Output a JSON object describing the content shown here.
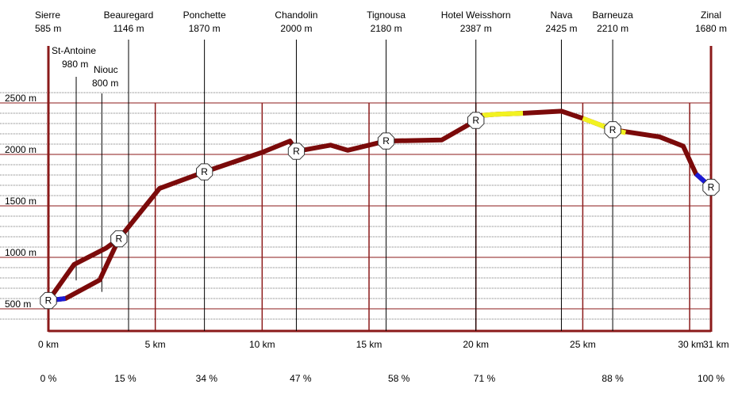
{
  "chart_data": {
    "type": "line",
    "title": "",
    "xlabel": "",
    "ylabel": "",
    "xlim": [
      0,
      31
    ],
    "ylim": [
      260,
      2800
    ],
    "grid": true,
    "y_major_ticks": [
      {
        "value": 500,
        "label": "500 m"
      },
      {
        "value": 1000,
        "label": "1000 m"
      },
      {
        "value": 1500,
        "label": "1500 m"
      },
      {
        "value": 2000,
        "label": "2000 m"
      },
      {
        "value": 2500,
        "label": "2500 m"
      }
    ],
    "y_minor_step": 100,
    "x_major_lines": [
      0,
      5,
      10,
      15,
      20,
      25,
      30
    ],
    "x_ticks": [
      {
        "value": 0,
        "label": "0 km"
      },
      {
        "value": 5,
        "label": "5 km"
      },
      {
        "value": 10,
        "label": "10 km"
      },
      {
        "value": 15,
        "label": "15 km"
      },
      {
        "value": 20,
        "label": "20 km"
      },
      {
        "value": 25,
        "label": "25 km"
      },
      {
        "value": 30,
        "label": "30 km"
      },
      {
        "value": 31,
        "label": "31 km"
      }
    ],
    "percent_labels": [
      {
        "x": 0,
        "label": "0 %"
      },
      {
        "x": 3.6,
        "label": "15 %"
      },
      {
        "x": 7.4,
        "label": "34 %"
      },
      {
        "x": 11.8,
        "label": "47 %"
      },
      {
        "x": 16.4,
        "label": "58 %"
      },
      {
        "x": 20.4,
        "label": "71 %"
      },
      {
        "x": 26.4,
        "label": "88 %"
      },
      {
        "x": 31,
        "label": "100 %"
      }
    ],
    "places": [
      {
        "name": "Sierre",
        "alt": "585 m",
        "x": 0,
        "point": [
          0,
          580
        ]
      },
      {
        "name": "Beauregard",
        "alt": "1146 m",
        "x": 3.75,
        "point": [
          3.3,
          1180
        ]
      },
      {
        "name": "Ponchette",
        "alt": "1870 m",
        "x": 7.3,
        "point": [
          7.3,
          1830
        ]
      },
      {
        "name": "Chandolin",
        "alt": "2000 m",
        "x": 11.6,
        "point": [
          11.6,
          2030
        ]
      },
      {
        "name": "Tignousa",
        "alt": "2180 m",
        "x": 15.8,
        "point": [
          15.8,
          2130
        ]
      },
      {
        "name": "Hotel Weisshorn",
        "alt": "2387 m",
        "x": 20.0,
        "point": [
          20.0,
          2330
        ]
      },
      {
        "name": "Nava",
        "alt": "2425 m",
        "x": 24.0,
        "point": [
          24.0,
          2420
        ]
      },
      {
        "name": "Barneuza",
        "alt": "2210 m",
        "x": 26.4,
        "point": [
          26.4,
          2240
        ]
      },
      {
        "name": "Zinal",
        "alt": "1680 m",
        "x": 31.0,
        "point": [
          31.0,
          1680
        ]
      }
    ],
    "side_places": [
      {
        "name": "St-Antoine",
        "alt": "980 m",
        "point": [
          1.3,
          930
        ]
      },
      {
        "name": "Niouc",
        "alt": "800 m",
        "point": [
          2.5,
          780
        ]
      }
    ],
    "route_main": [
      [
        0,
        580
      ],
      [
        1.2,
        930
      ],
      [
        2.7,
        1090
      ],
      [
        3.3,
        1180
      ],
      [
        5.2,
        1670
      ],
      [
        7.3,
        1830
      ],
      [
        10.0,
        2020
      ],
      [
        11.3,
        2130
      ],
      [
        11.6,
        2030
      ],
      [
        13.2,
        2090
      ],
      [
        14.0,
        2040
      ],
      [
        15.8,
        2130
      ],
      [
        18.4,
        2140
      ],
      [
        20.0,
        2330
      ],
      [
        20.3,
        2380
      ],
      [
        21.0,
        2390
      ],
      [
        22.2,
        2400
      ],
      [
        24.0,
        2420
      ],
      [
        25.0,
        2350
      ],
      [
        26.4,
        2240
      ],
      [
        28.6,
        2170
      ],
      [
        29.7,
        2080
      ],
      [
        30.3,
        1810
      ],
      [
        31.0,
        1680
      ]
    ],
    "route_alt": [
      [
        0,
        580
      ],
      [
        0.8,
        600
      ],
      [
        2.4,
        780
      ],
      [
        3.3,
        1180
      ]
    ],
    "segments": [
      {
        "kind": "road",
        "color": "#1b1bd6",
        "points": [
          [
            0,
            580
          ],
          [
            0.8,
            600
          ]
        ]
      },
      {
        "kind": "road",
        "color": "#1b1bd6",
        "points": [
          [
            30.3,
            1810
          ],
          [
            31.0,
            1680
          ]
        ]
      },
      {
        "kind": "gravel",
        "color": "#f2f221",
        "points": [
          [
            20.3,
            2380
          ],
          [
            21.0,
            2390
          ],
          [
            22.2,
            2400
          ]
        ]
      },
      {
        "kind": "gravel",
        "color": "#f2f221",
        "points": [
          [
            25.0,
            2350
          ],
          [
            26.4,
            2240
          ],
          [
            27.0,
            2210
          ]
        ]
      }
    ],
    "markers": [
      {
        "symbol": "R",
        "point": [
          0,
          580
        ]
      },
      {
        "symbol": "R",
        "point": [
          3.3,
          1180
        ]
      },
      {
        "symbol": "R",
        "point": [
          7.3,
          1830
        ]
      },
      {
        "symbol": "R",
        "point": [
          11.6,
          2030
        ]
      },
      {
        "symbol": "R",
        "point": [
          15.8,
          2130
        ]
      },
      {
        "symbol": "R",
        "point": [
          20.0,
          2330
        ]
      },
      {
        "symbol": "R",
        "point": [
          26.4,
          2240
        ]
      },
      {
        "symbol": "R",
        "point": [
          31.0,
          1680
        ]
      }
    ],
    "colors": {
      "route": "#7b0a0a",
      "frame": "#8b1a1a",
      "minor_grid": "#7a7a7a",
      "major_grid": "#8b1a1a",
      "road": "#1b1bd6",
      "gravel": "#f2f221"
    }
  }
}
